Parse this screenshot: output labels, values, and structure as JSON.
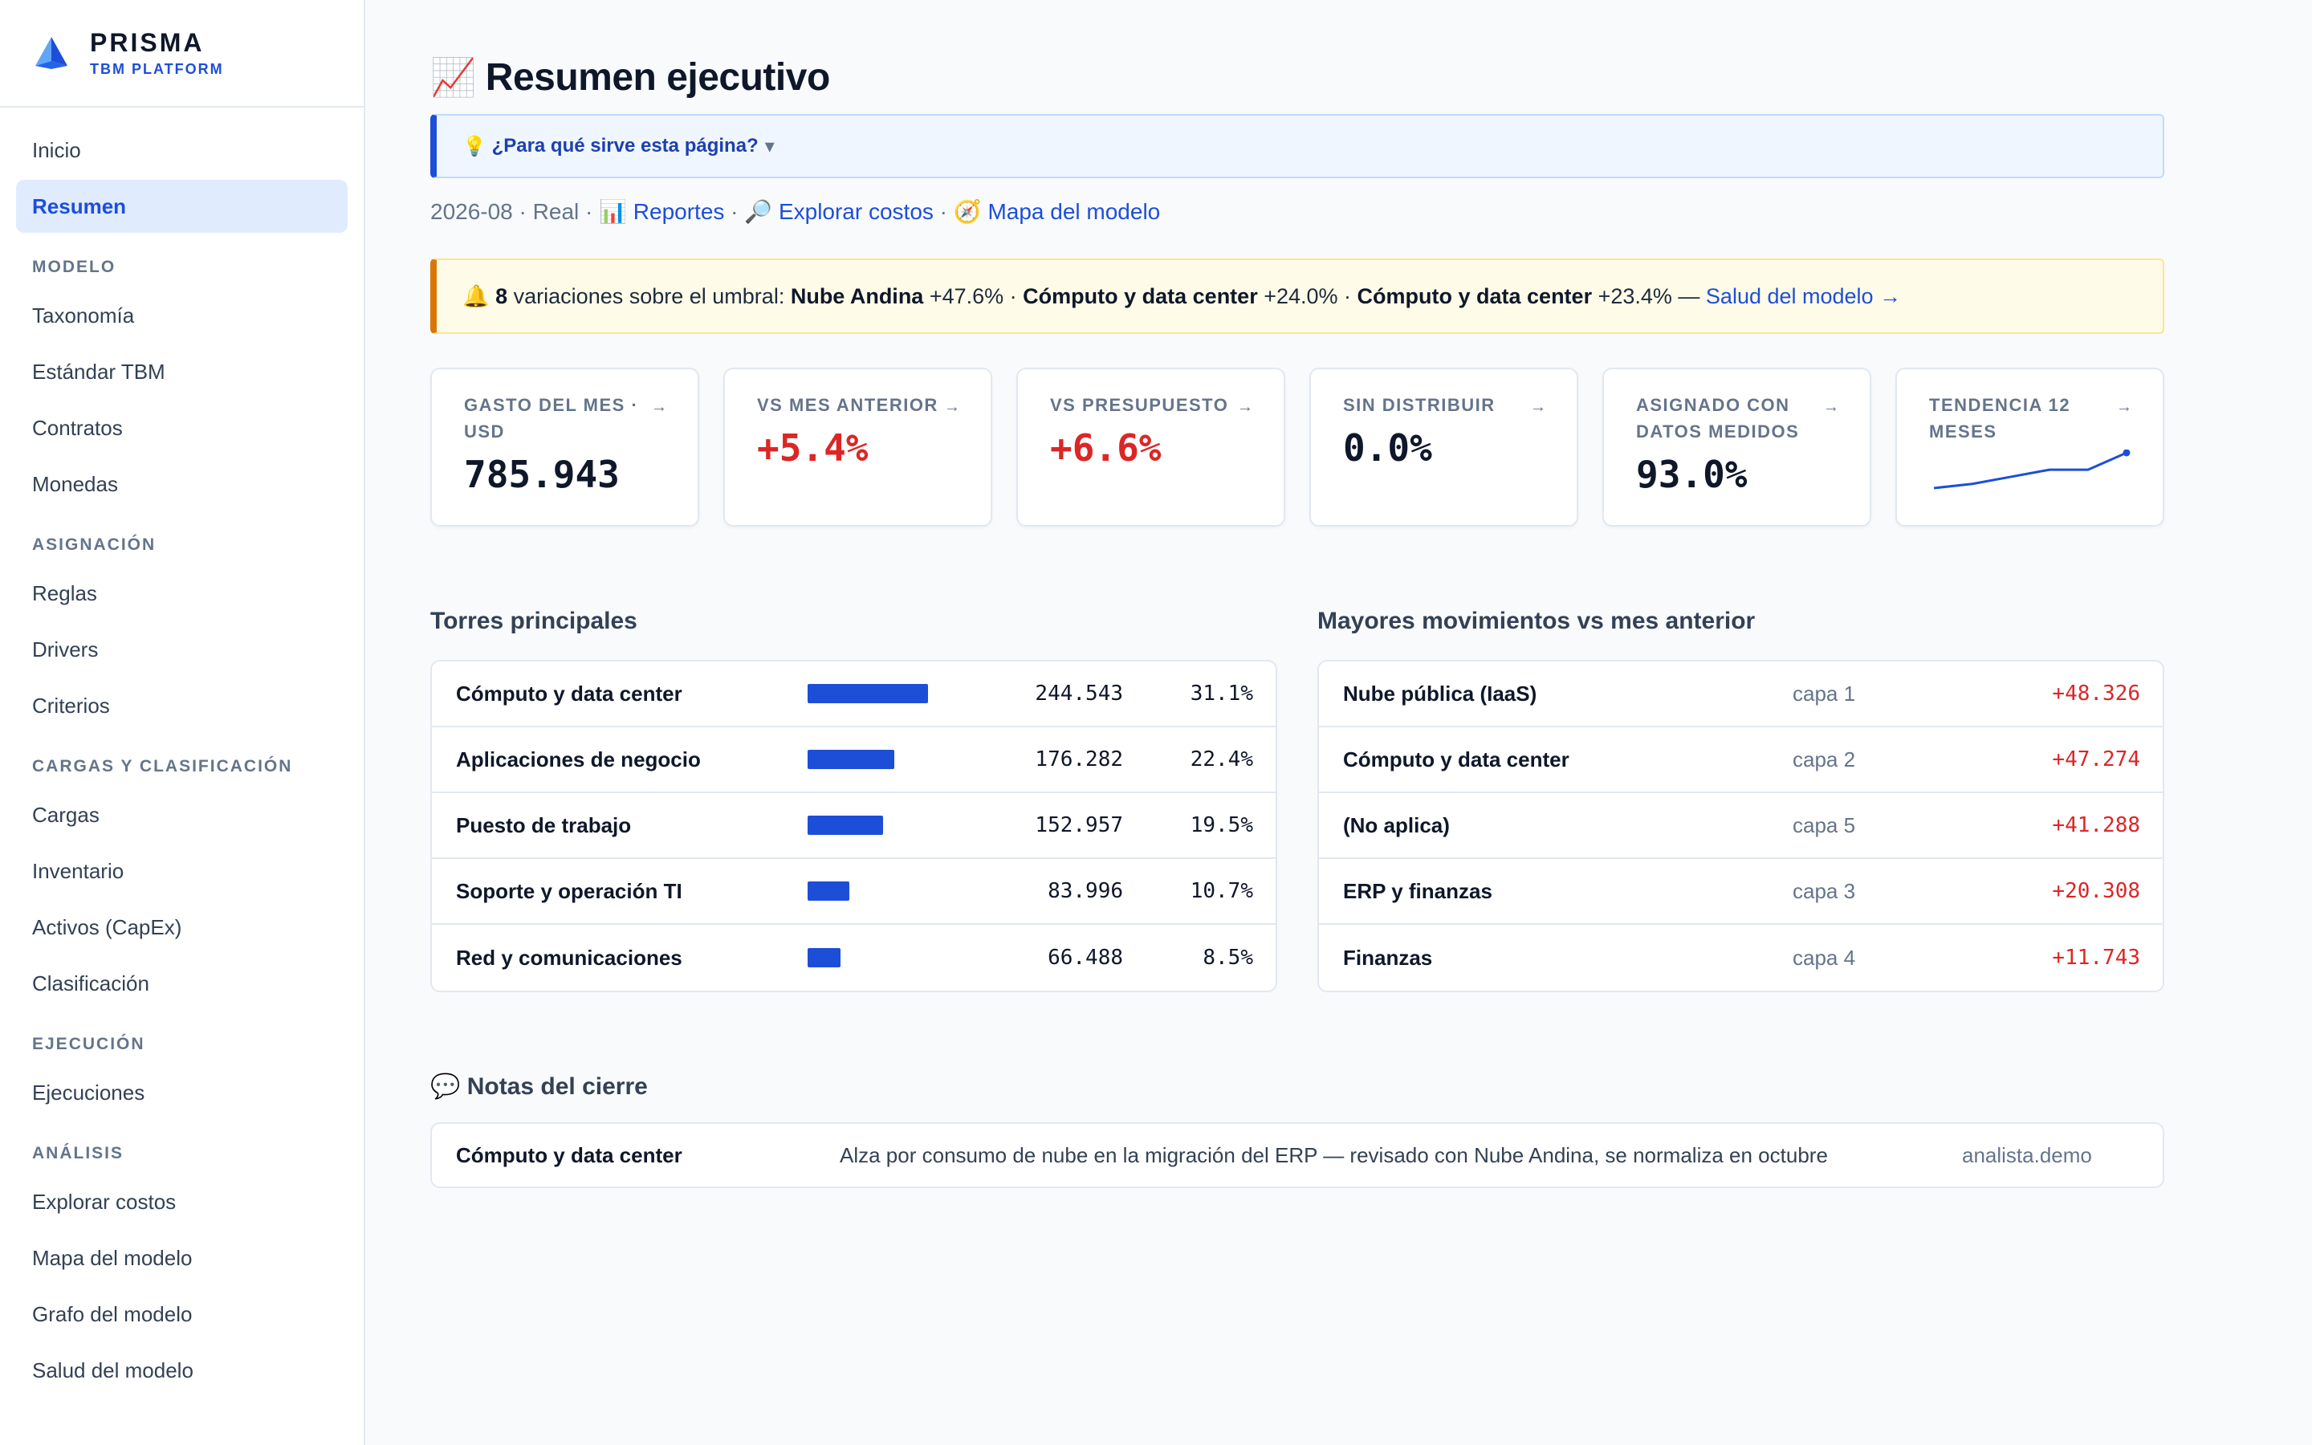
{
  "brand": {
    "name": "PRISMA",
    "subtitle": "TBM PLATFORM"
  },
  "sidebar": {
    "top": [
      {
        "label": "Inicio",
        "active": false
      },
      {
        "label": "Resumen",
        "active": true
      }
    ],
    "sections": [
      {
        "title": "MODELO",
        "items": [
          "Taxonomía",
          "Estándar TBM",
          "Contratos",
          "Monedas"
        ]
      },
      {
        "title": "ASIGNACIÓN",
        "items": [
          "Reglas",
          "Drivers",
          "Criterios"
        ]
      },
      {
        "title": "CARGAS Y CLASIFICACIÓN",
        "items": [
          "Cargas",
          "Inventario",
          "Activos (CapEx)",
          "Clasificación"
        ]
      },
      {
        "title": "EJECUCIÓN",
        "items": [
          "Ejecuciones"
        ]
      },
      {
        "title": "ANÁLISIS",
        "items": [
          "Explorar costos",
          "Mapa del modelo",
          "Grafo del modelo",
          "Salud del modelo"
        ]
      }
    ]
  },
  "page": {
    "title_icon": "📈",
    "title": "Resumen ejecutivo",
    "help": {
      "icon": "💡",
      "text": "¿Para qué sirve esta página?",
      "caret": "▾"
    },
    "meta": {
      "period": "2026-08",
      "sep": " · ",
      "scenario": "Real",
      "links": [
        {
          "icon": "📊",
          "label": "Reportes"
        },
        {
          "icon": "🔎",
          "label": "Explorar costos"
        },
        {
          "icon": "🧭",
          "label": "Mapa del modelo"
        }
      ]
    },
    "alert": {
      "icon": "🔔",
      "count": "8",
      "text": "variaciones sobre el umbral:",
      "items": [
        {
          "name": "Nube Andina",
          "delta": "+47.6%"
        },
        {
          "name": "Cómputo y data center",
          "delta": "+24.0%"
        },
        {
          "name": "Cómputo y data center",
          "delta": "+23.4%"
        }
      ],
      "dash": "—",
      "link": "Salud del modelo →"
    },
    "kpis": [
      {
        "label": "GASTO DEL MES · USD",
        "value": "785.943",
        "tone": "neutral",
        "arrow": "→"
      },
      {
        "label": "VS MES ANTERIOR",
        "value": "+5.4%",
        "tone": "up",
        "arrow": "→"
      },
      {
        "label": "VS PRESUPUESTO",
        "value": "+6.6%",
        "tone": "up",
        "arrow": "→"
      },
      {
        "label": "SIN DISTRIBUIR",
        "value": "0.0%",
        "tone": "neutral",
        "arrow": "→"
      },
      {
        "label": "ASIGNADO CON DATOS MEDIDOS",
        "value": "93.0%",
        "tone": "neutral",
        "arrow": "→"
      },
      {
        "label": "TENDENCIA 12 MESES",
        "value": "",
        "tone": "spark",
        "arrow": "→"
      }
    ],
    "sparkline": {
      "values": [
        710,
        716,
        726,
        736,
        736,
        760
      ],
      "color": "#1d4ed8"
    },
    "towers": {
      "title": "Torres principales",
      "rows": [
        {
          "name": "Cómputo y data center",
          "amount": "244.543",
          "pct": "31.1%",
          "share": 0.311
        },
        {
          "name": "Aplicaciones de negocio",
          "amount": "176.282",
          "pct": "22.4%",
          "share": 0.224
        },
        {
          "name": "Puesto de trabajo",
          "amount": "152.957",
          "pct": "19.5%",
          "share": 0.195
        },
        {
          "name": "Soporte y operación TI",
          "amount": "83.996",
          "pct": "10.7%",
          "share": 0.107
        },
        {
          "name": "Red y comunicaciones",
          "amount": "66.488",
          "pct": "8.5%",
          "share": 0.085
        }
      ]
    },
    "movers": {
      "title": "Mayores movimientos vs mes anterior",
      "rows": [
        {
          "name": "Nube pública (IaaS)",
          "layer": "capa 1",
          "delta": "+48.326"
        },
        {
          "name": "Cómputo y data center",
          "layer": "capa 2",
          "delta": "+47.274"
        },
        {
          "name": "(No aplica)",
          "layer": "capa 5",
          "delta": "+41.288"
        },
        {
          "name": "ERP y finanzas",
          "layer": "capa 3",
          "delta": "+20.308"
        },
        {
          "name": "Finanzas",
          "layer": "capa 4",
          "delta": "+11.743"
        }
      ]
    },
    "notes": {
      "icon": "💬",
      "title": "Notas del cierre",
      "rows": [
        {
          "name": "Cómputo y data center",
          "text": "Alza por consumo de nube en la migración del ERP — revisado con Nube Andina, se normaliza en octubre",
          "user": "analista.demo"
        }
      ]
    }
  }
}
